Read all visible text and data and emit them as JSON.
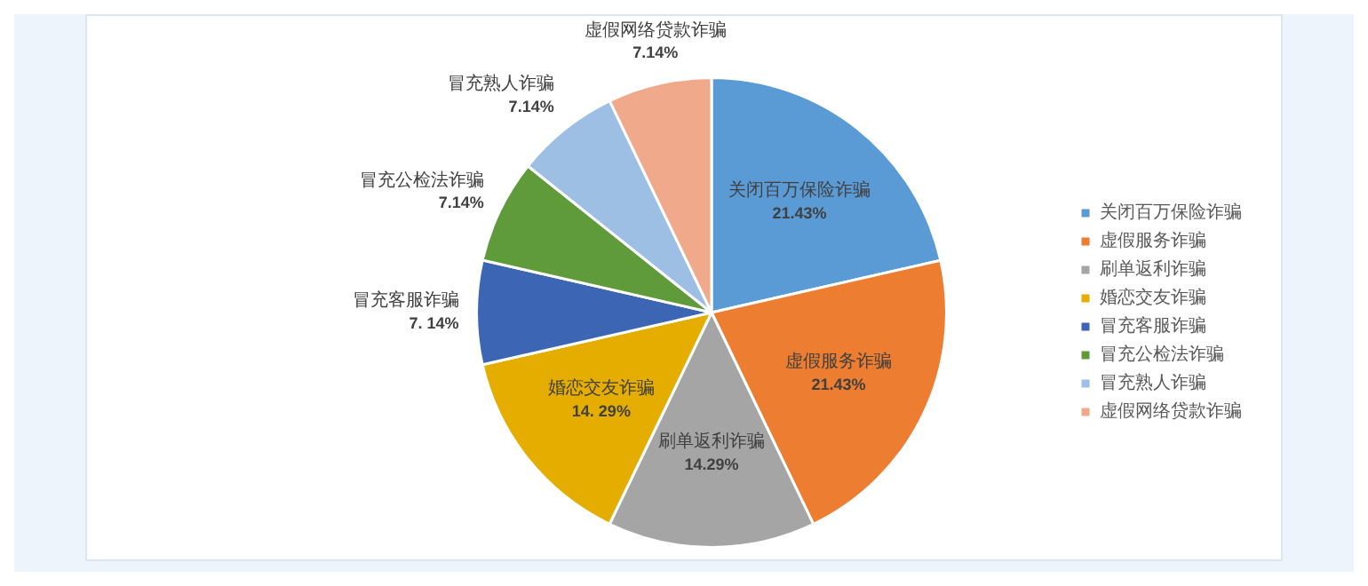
{
  "chart_data": {
    "type": "pie",
    "categories": [
      "关闭百万保险诈骗",
      "虚假服务诈骗",
      "刷单返利诈骗",
      "婚恋交友诈骗",
      "冒充客服诈骗",
      "冒充公检法诈骗",
      "冒充熟人诈骗",
      "虚假网络贷款诈骗"
    ],
    "values": [
      21.43,
      21.43,
      14.29,
      14.29,
      7.14,
      7.14,
      7.14,
      7.14
    ],
    "value_labels": [
      "21.43%",
      "21.43%",
      "14.29%",
      "14. 29%",
      "7. 14%",
      "7.14%",
      "7.14%",
      "7.14%"
    ],
    "colors": [
      "#5b9bd5",
      "#ed7d31",
      "#a5a5a5",
      "#e5ad00",
      "#3c65b4",
      "#5f9b3a",
      "#9dbfe4",
      "#f0a98a"
    ],
    "legend": "right"
  }
}
